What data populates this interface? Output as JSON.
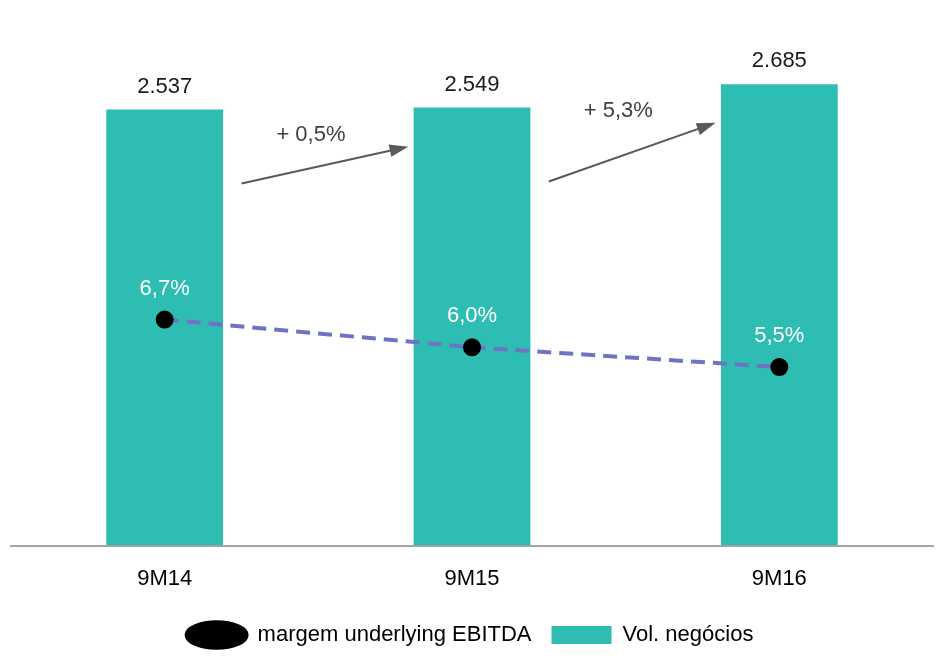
{
  "chart_data": {
    "type": "bar",
    "categories": [
      "9M14",
      "9M15",
      "9M16"
    ],
    "series": [
      {
        "name": "Vol. negócios",
        "type": "bar",
        "color": "#2ebdb2",
        "values": [
          2537,
          2549,
          2685
        ],
        "value_labels": [
          "2.537",
          "2.549",
          "2.685"
        ]
      },
      {
        "name": "margem underlying EBITDA",
        "type": "line",
        "axis": "y2",
        "color": "#6f73c4",
        "line_style": "dashed",
        "marker": "circle",
        "values": [
          6.7,
          6.0,
          5.5
        ],
        "value_labels": [
          "6,7%",
          "6,0%",
          "5,5%"
        ]
      }
    ],
    "ylim": [
      0,
      3000
    ],
    "y2lim": [
      1,
      14
    ],
    "tick_labels": "x",
    "grid": false,
    "legend": "bottom",
    "data_labels": true,
    "annotations": [
      {
        "text": "+ 0,5%",
        "from": "9M14",
        "to": "9M15"
      },
      {
        "text": "+ 5,3%",
        "from": "9M15",
        "to": "9M16"
      }
    ]
  }
}
